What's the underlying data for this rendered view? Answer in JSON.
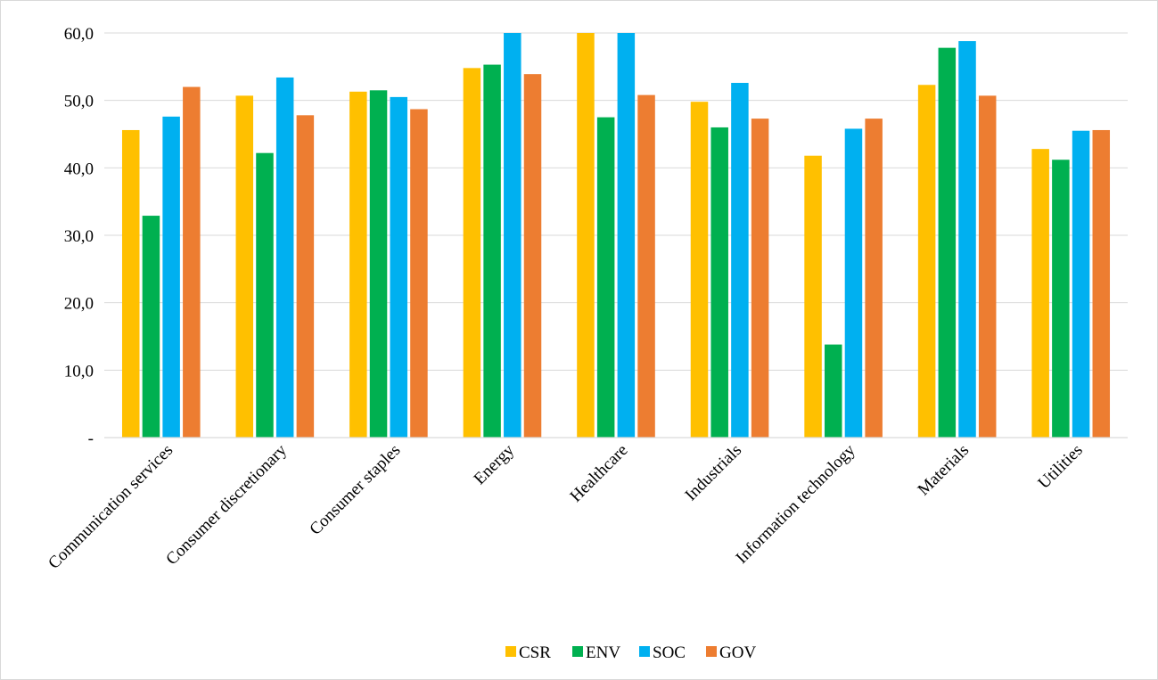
{
  "chart_data": {
    "type": "bar",
    "title": "",
    "xlabel": "",
    "ylabel": "",
    "ylim": [
      0,
      60
    ],
    "yticks": [
      {
        "value": 0,
        "label": "-"
      },
      {
        "value": 10,
        "label": "10,0"
      },
      {
        "value": 20,
        "label": "20,0"
      },
      {
        "value": 30,
        "label": "30,0"
      },
      {
        "value": 40,
        "label": "40,0"
      },
      {
        "value": 50,
        "label": "50,0"
      },
      {
        "value": 60,
        "label": "60,0"
      }
    ],
    "grid": true,
    "legend_position": "bottom",
    "categories": [
      "Communication services",
      "Consumer discretionary",
      "Consumer staples",
      "Energy",
      "Healthcare",
      "Industrials",
      "Information technology",
      "Materials",
      "Utilities"
    ],
    "series": [
      {
        "name": "CSR",
        "color": "#FFC000",
        "values": [
          45.6,
          50.7,
          51.3,
          54.8,
          60.0,
          49.8,
          41.8,
          52.3,
          42.8
        ]
      },
      {
        "name": "ENV",
        "color": "#00B050",
        "values": [
          32.9,
          42.2,
          51.5,
          55.3,
          47.5,
          46.0,
          13.8,
          57.8,
          41.2
        ]
      },
      {
        "name": "SOC",
        "color": "#00B0F0",
        "values": [
          47.6,
          53.4,
          50.5,
          60.0,
          60.0,
          52.6,
          45.8,
          58.8,
          45.5
        ]
      },
      {
        "name": "GOV",
        "color": "#ED7D31",
        "values": [
          52.0,
          47.8,
          48.7,
          53.9,
          50.8,
          47.3,
          47.3,
          50.7,
          45.6
        ]
      }
    ]
  }
}
